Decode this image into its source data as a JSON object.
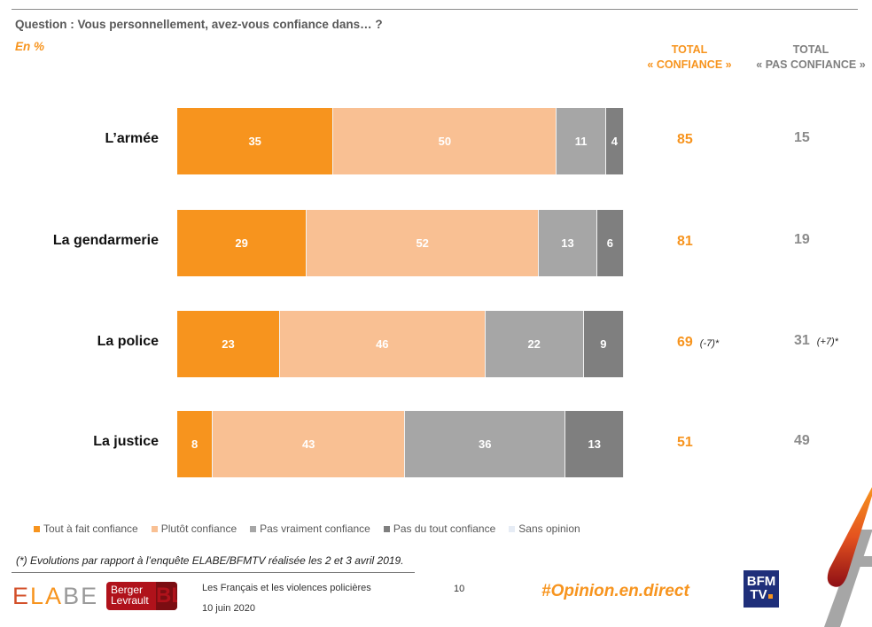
{
  "header": {
    "question": "Question : Vous personnellement, avez-vous confiance dans… ?",
    "unit": "En %",
    "col_confiance_line1": "TOTAL",
    "col_confiance_line2": "« CONFIANCE »",
    "col_pas_line1": "TOTAL",
    "col_pas_line2": "« PAS CONFIANCE »"
  },
  "chart_data": {
    "type": "bar",
    "orientation": "horizontal-stacked-100",
    "title": "Question : Vous personnellement, avez-vous confiance dans… ?",
    "unit": "En %",
    "xlim": [
      0,
      100
    ],
    "categories": [
      "L’armée",
      "La gendarmerie",
      "La police",
      "La justice"
    ],
    "series": [
      {
        "name": "Tout à fait confiance",
        "color": "#F7941E",
        "values": [
          35,
          29,
          23,
          8
        ]
      },
      {
        "name": "Plutôt confiance",
        "color": "#F9C093",
        "values": [
          50,
          52,
          46,
          43
        ]
      },
      {
        "name": "Pas vraiment confiance",
        "color": "#A6A6A6",
        "values": [
          11,
          13,
          22,
          36
        ]
      },
      {
        "name": "Pas du tout confiance",
        "color": "#7F7F7F",
        "values": [
          4,
          6,
          9,
          13
        ]
      },
      {
        "name": "Sans opinion",
        "color": "#E6ECF5",
        "values": [
          0,
          0,
          0,
          0
        ]
      }
    ],
    "totals": {
      "confiance": [
        "85",
        "81",
        "69",
        "51"
      ],
      "pas_confiance": [
        "15",
        "19",
        "31",
        "49"
      ],
      "evolution_confiance": [
        "",
        "",
        "(-7)*",
        ""
      ],
      "evolution_pas_confiance": [
        "",
        "",
        "(+7)*",
        ""
      ]
    },
    "legend_position": "bottom-left"
  },
  "footer": {
    "footnote": "(*) Evolutions par rapport à l’enquête ELABE/BFMTV réalisée les 2 et 3 avril 2019.",
    "elabe_logo": "ELABE",
    "berger_logo_line1": "Berger",
    "berger_logo_line2": "Levrault",
    "berger_logo_mark": "BL",
    "doc_title": "Les Français et les violences policières",
    "doc_date": "10 juin 2020",
    "page_number": "10",
    "hashtag": "#Opinion.en.direct",
    "bfm_line1": "BFM",
    "bfm_line2": "TV"
  }
}
